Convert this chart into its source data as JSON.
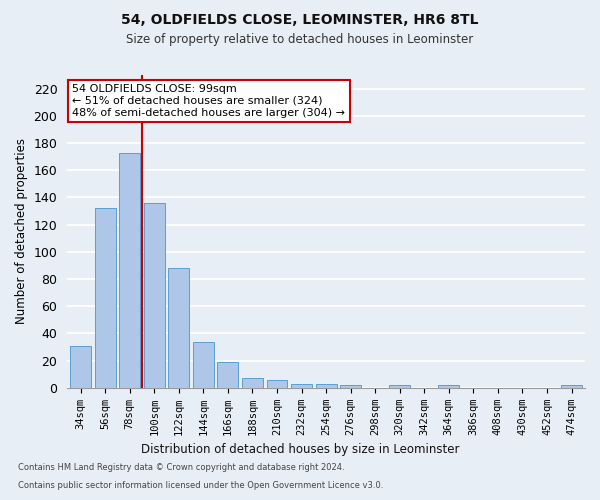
{
  "title_line1": "54, OLDFIELDS CLOSE, LEOMINSTER, HR6 8TL",
  "title_line2": "Size of property relative to detached houses in Leominster",
  "xlabel": "Distribution of detached houses by size in Leominster",
  "ylabel": "Number of detached properties",
  "footnote1": "Contains HM Land Registry data © Crown copyright and database right 2024.",
  "footnote2": "Contains public sector information licensed under the Open Government Licence v3.0.",
  "annotation_line1": "54 OLDFIELDS CLOSE: 99sqm",
  "annotation_line2": "← 51% of detached houses are smaller (324)",
  "annotation_line3": "48% of semi-detached houses are larger (304) →",
  "bar_labels": [
    "34sqm",
    "56sqm",
    "78sqm",
    "100sqm",
    "122sqm",
    "144sqm",
    "166sqm",
    "188sqm",
    "210sqm",
    "232sqm",
    "254sqm",
    "276sqm",
    "298sqm",
    "320sqm",
    "342sqm",
    "364sqm",
    "386sqm",
    "408sqm",
    "430sqm",
    "452sqm",
    "474sqm"
  ],
  "bar_values": [
    31,
    132,
    173,
    136,
    88,
    34,
    19,
    7,
    6,
    3,
    3,
    2,
    0,
    2,
    0,
    2,
    0,
    0,
    0,
    0,
    2
  ],
  "bar_color": "#aec6e8",
  "bar_edge_color": "#5a9fd4",
  "vline_color": "#cc0000",
  "ylim": [
    0,
    230
  ],
  "yticks": [
    0,
    20,
    40,
    60,
    80,
    100,
    120,
    140,
    160,
    180,
    200,
    220
  ],
  "background_color": "#e8eef5",
  "plot_bg_color": "#e8eef5",
  "grid_color": "#ffffff",
  "annotation_box_color": "#ffffff",
  "annotation_box_edge": "#cc0000"
}
